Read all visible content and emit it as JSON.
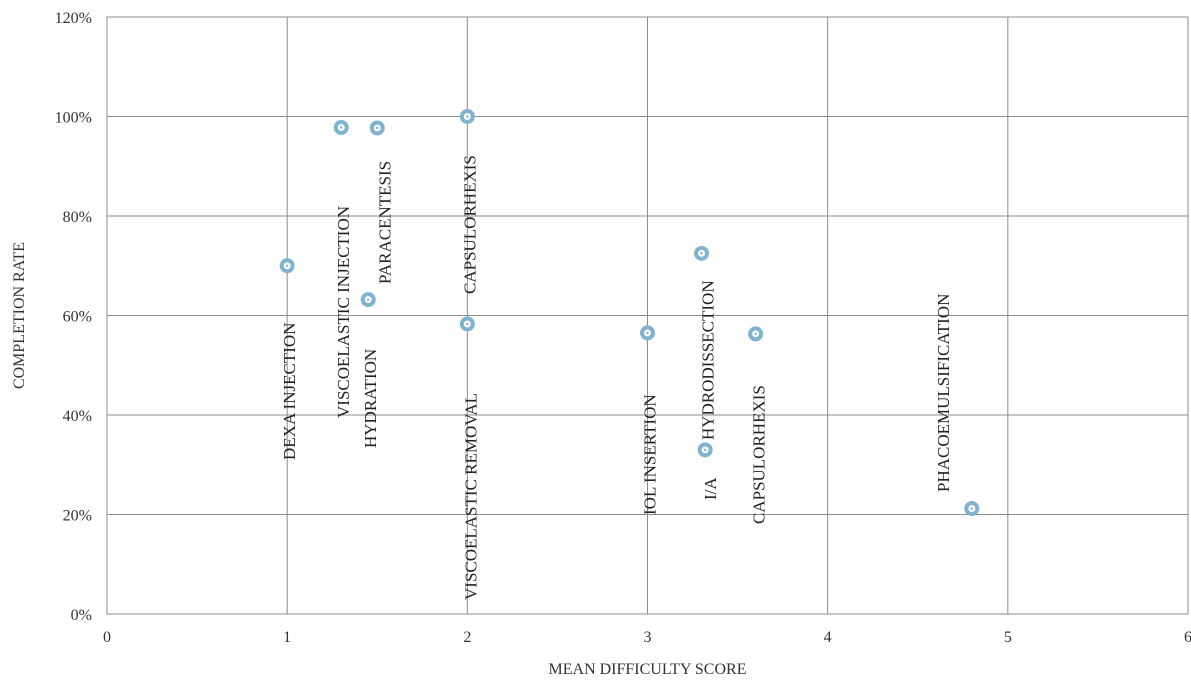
{
  "chart_data": {
    "type": "scatter",
    "title": "",
    "xlabel": "MEAN DIFFICULTY SCORE",
    "ylabel": "COMPLETION RATE",
    "xlim": [
      0,
      6
    ],
    "ylim": [
      0,
      120
    ],
    "x_ticks": [
      0,
      1,
      2,
      3,
      4,
      5,
      6
    ],
    "y_ticks": [
      0,
      20,
      40,
      60,
      80,
      100,
      120
    ],
    "x_tick_labels": [
      "0",
      "1",
      "2",
      "3",
      "4",
      "5",
      "6"
    ],
    "y_tick_labels": [
      "0%",
      "20%",
      "40%",
      "60%",
      "80%",
      "100%",
      "120%"
    ],
    "grid": true,
    "legend": "none",
    "marker_color": "#7fb3d0",
    "points": [
      {
        "label": "DEXA INJECTION",
        "x": 1.0,
        "y": 70.0
      },
      {
        "label": "VISCOELASTIC INJECTION",
        "x": 1.3,
        "y": 97.8
      },
      {
        "label": "HYDRATION",
        "x": 1.45,
        "y": 63.2
      },
      {
        "label": "PARACENTESIS",
        "x": 1.5,
        "y": 97.7
      },
      {
        "label": "CAPSULORHEXIS",
        "x": 2.0,
        "y": 100.0
      },
      {
        "label": "VISCOELASTIC REMOVAL",
        "x": 2.0,
        "y": 58.3
      },
      {
        "label": "IOL INSERTION",
        "x": 3.0,
        "y": 56.5
      },
      {
        "label": "HYDRODISSECTION",
        "x": 3.3,
        "y": 72.5
      },
      {
        "label": "I/A",
        "x": 3.32,
        "y": 33.0
      },
      {
        "label": "CAPSULORHEXIS",
        "x": 3.6,
        "y": 56.3
      },
      {
        "label": "PHACOEMULSIFICATION",
        "x": 4.8,
        "y": 21.2
      }
    ]
  }
}
